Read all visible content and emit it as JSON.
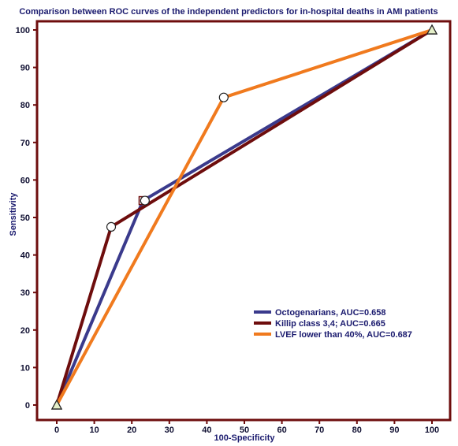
{
  "chart_data": {
    "type": "line",
    "title": "Comparison between ROC curves of the  independent predictors for in-hospital deaths in AMI patients",
    "xlabel": "100-Specificity",
    "ylabel": "Sensitivity",
    "xlim": [
      0,
      100
    ],
    "ylim": [
      0,
      100
    ],
    "xticks": [
      "0",
      "10",
      "20",
      "30",
      "40",
      "50",
      "60",
      "70",
      "80",
      "90",
      "100"
    ],
    "yticks": [
      "0",
      "10",
      "20",
      "30",
      "40",
      "50",
      "60",
      "70",
      "80",
      "90",
      "100"
    ],
    "grid": false,
    "legend_position": "bottom-right",
    "series": [
      {
        "name": "Octogenarians, AUC=0.658",
        "color": "#3a3a8c",
        "x": [
          0,
          23,
          100
        ],
        "y": [
          0,
          54.5,
          100
        ],
        "markers": [
          "triangle",
          "square",
          "triangle"
        ]
      },
      {
        "name": "Killip class 3,4; AUC=0.665",
        "color": "#6e0d0d",
        "x": [
          0,
          14.5,
          100
        ],
        "y": [
          0,
          47.5,
          100
        ],
        "markers": [
          "triangle",
          "circle",
          "triangle"
        ]
      },
      {
        "name": "LVEF lower than 40%, AUC=0.687",
        "color": "#f07a1e",
        "x": [
          0,
          44.5,
          100
        ],
        "y": [
          0,
          82,
          100
        ],
        "markers": [
          "triangle",
          "circle",
          "triangle"
        ]
      }
    ],
    "extra_markers": [
      {
        "shape": "circle",
        "x": 23.5,
        "y": 54.5
      }
    ]
  }
}
